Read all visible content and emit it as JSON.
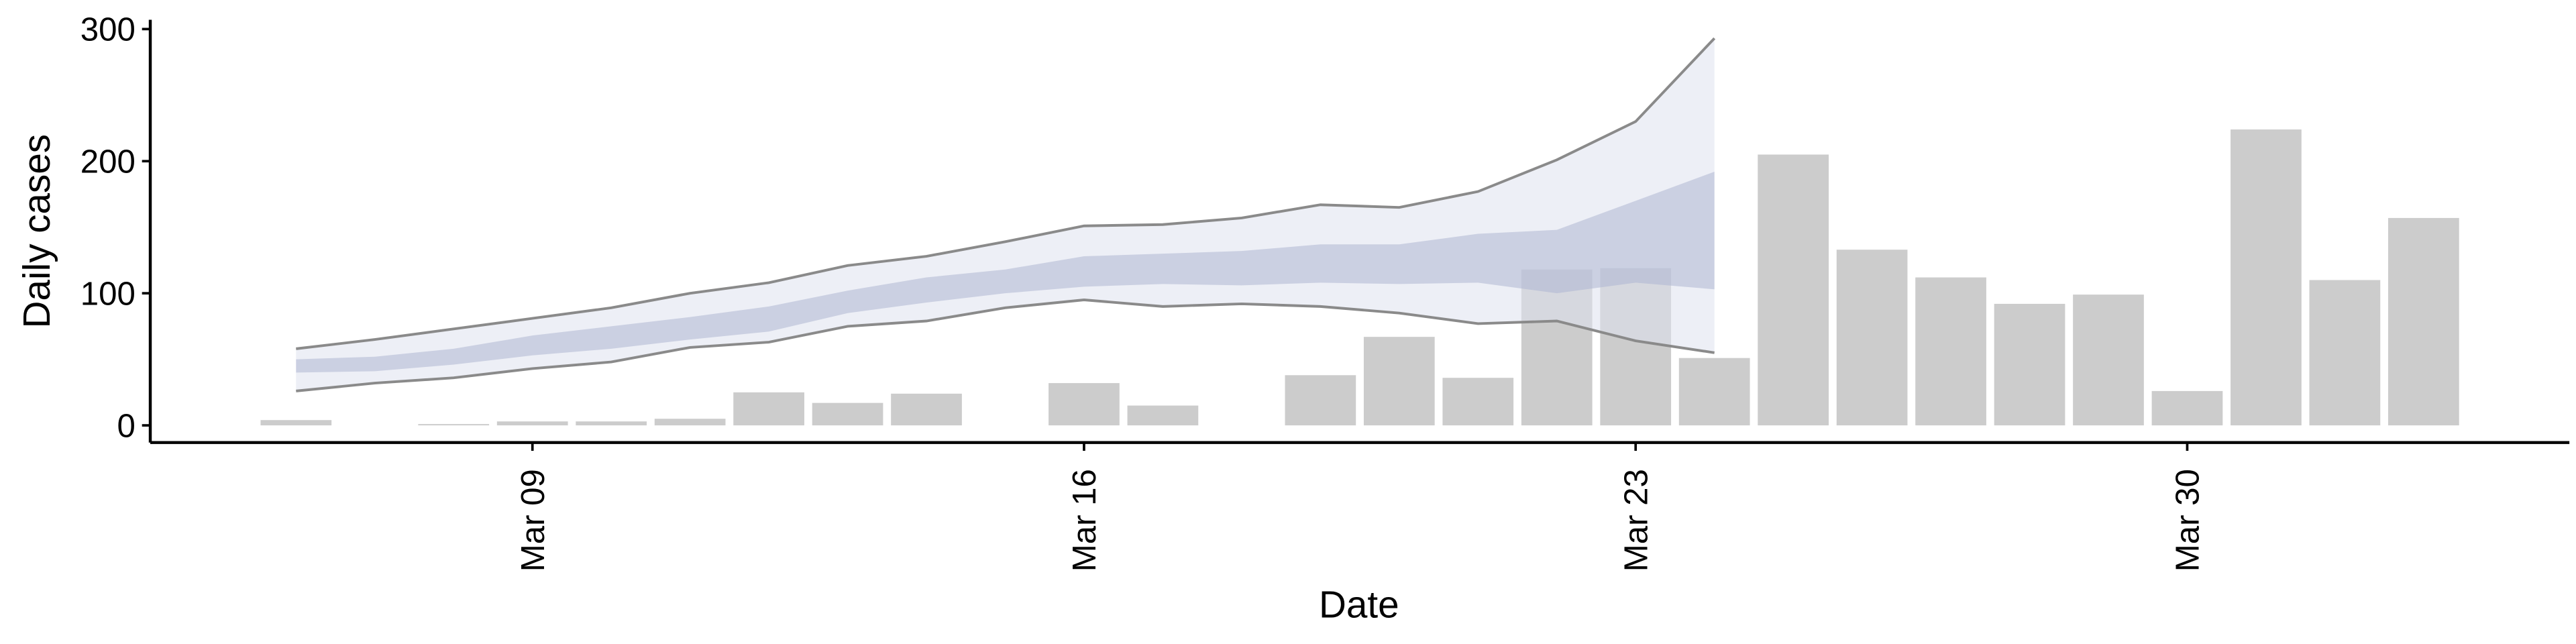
{
  "chart_data": {
    "type": "bar",
    "x_label": "Date",
    "y_label": "Daily cases",
    "categories": [
      null,
      null,
      null,
      "Mar 09",
      null,
      null,
      null,
      null,
      null,
      null,
      "Mar 16",
      null,
      null,
      null,
      null,
      null,
      null,
      "Mar 23",
      null,
      null,
      null,
      null,
      null,
      null,
      "Mar 30",
      null,
      null,
      null
    ],
    "values": [
      4,
      0,
      1,
      3,
      3,
      5,
      25,
      17,
      24,
      0,
      32,
      15,
      0,
      38,
      67,
      36,
      118,
      119,
      51,
      205,
      133,
      112,
      92,
      99,
      26,
      224,
      110,
      157
    ],
    "color": "#cccccc",
    "bands": [
      {
        "color": "#dfe2ee",
        "line_color": "#8a8a8a",
        "upper": [
          58,
          65,
          73,
          81,
          89,
          100,
          108,
          121,
          128,
          139,
          151,
          152,
          157,
          167,
          165,
          177,
          201,
          230,
          293,
          null,
          null,
          null,
          null,
          null,
          null,
          null,
          null,
          null
        ],
        "lower": [
          26,
          32,
          36,
          43,
          48,
          59,
          63,
          75,
          79,
          89,
          95,
          90,
          92,
          90,
          85,
          77,
          79,
          64,
          55,
          null,
          null,
          null,
          null,
          null,
          null,
          null,
          null,
          null
        ]
      },
      {
        "color": "#aeb6d2",
        "upper": [
          50,
          52,
          58,
          68,
          75,
          82,
          90,
          102,
          112,
          118,
          128,
          130,
          132,
          137,
          137,
          145,
          148,
          170,
          192,
          null,
          null,
          null,
          null,
          null,
          null,
          null,
          null,
          null
        ],
        "lower": [
          40,
          41,
          46,
          53,
          58,
          65,
          71,
          85,
          93,
          100,
          105,
          107,
          106,
          108,
          107,
          108,
          100,
          108,
          103,
          null,
          null,
          null,
          null,
          null,
          null,
          null,
          null,
          null
        ]
      }
    ],
    "ylim": [
      -13,
      307
    ],
    "yticks": [
      0,
      100,
      200,
      300
    ],
    "grid": false
  }
}
